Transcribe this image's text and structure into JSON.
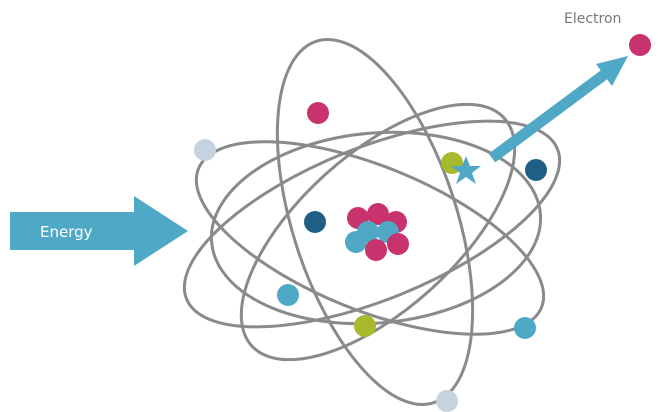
{
  "labels": {
    "electron": "Electron",
    "energy": "Energy"
  }
}
